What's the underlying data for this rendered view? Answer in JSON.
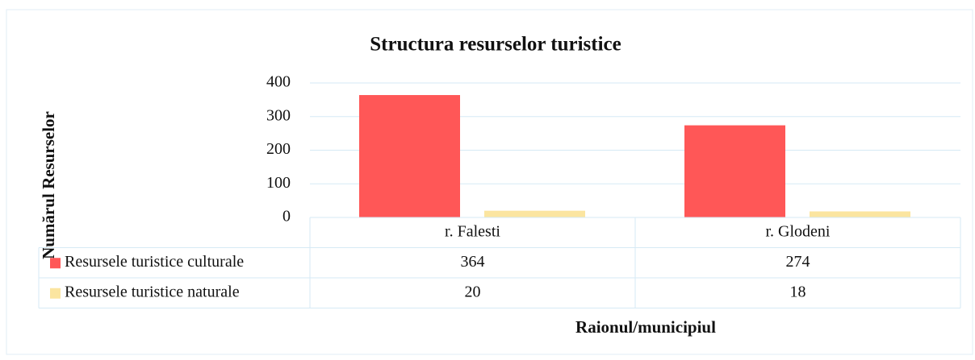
{
  "chart_data": {
    "type": "bar",
    "title": "Structura resurselor turistice",
    "y_label": "Numărul Resurselor",
    "x_label": "Raionul/municipiul",
    "categories": [
      "r. Falesti",
      "r. Glodeni"
    ],
    "series": [
      {
        "name": "Resursele turistice culturale",
        "color": "#ff5757",
        "values": [
          364,
          274
        ]
      },
      {
        "name": "Resursele turistice naturale",
        "color": "#fbe5a0",
        "values": [
          20,
          18
        ]
      }
    ],
    "ylim": [
      0,
      400
    ],
    "yticks": [
      0,
      100,
      200,
      300,
      400
    ],
    "grid": true,
    "data_table": true
  }
}
